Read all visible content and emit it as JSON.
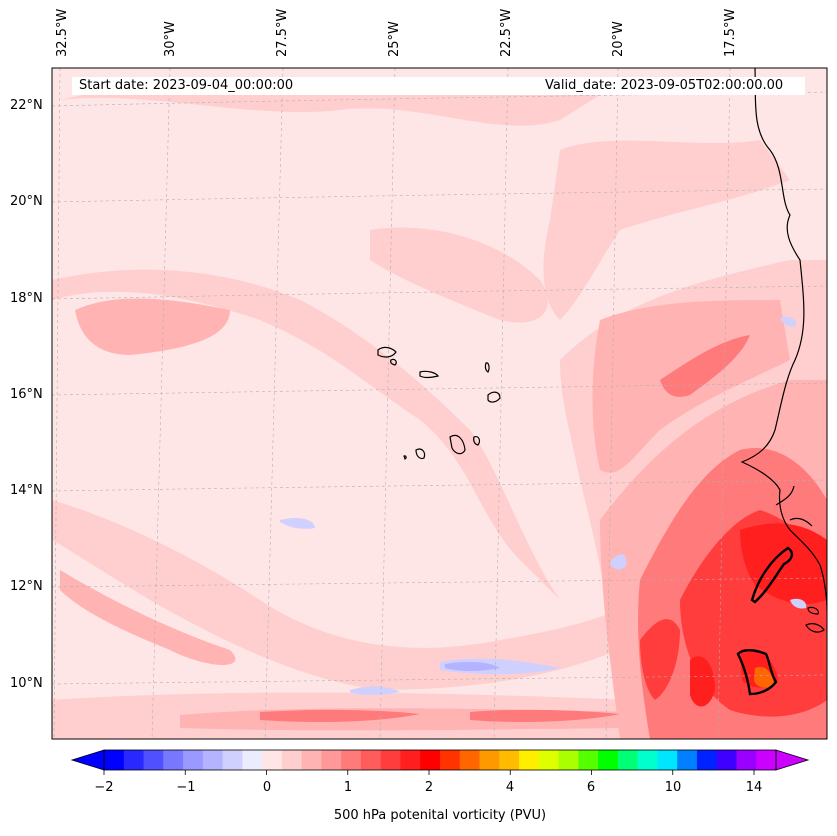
{
  "map": {
    "start_date": "Start date: 2023-09-04_00:00:00",
    "valid_date": "Valid_date: 2023-09-05T02:00:00.00",
    "lon_labels": [
      "32.5°W",
      "30°W",
      "27.5°W",
      "25°W",
      "22.5°W",
      "20°W",
      "17.5°W"
    ],
    "lat_labels": [
      "22°N",
      "20°N",
      "18°N",
      "16°N",
      "14°N",
      "12°N",
      "10°N"
    ],
    "extent": {
      "lon_min": -32.5,
      "lon_max": -15.5,
      "lat_min": 8.9,
      "lat_max": 22.8
    },
    "gridlines": true,
    "background_color": "#ffe6e6"
  },
  "colorbar": {
    "title": "500 hPa potenital vorticity (PVU)",
    "tick_labels": [
      "−2",
      "−1",
      "0",
      "1",
      "2",
      "4",
      "6",
      "10",
      "14"
    ],
    "colors": [
      "#0000ff",
      "#2828ff",
      "#5050ff",
      "#7878ff",
      "#9999ff",
      "#b3b3ff",
      "#d0d0ff",
      "#ececff",
      "#ffe6e6",
      "#ffcfcf",
      "#ffb3b3",
      "#ff9999",
      "#ff7a7a",
      "#ff5c5c",
      "#ff3d3d",
      "#ff1f1f",
      "#ff0000",
      "#ff3300",
      "#ff6600",
      "#ff9900",
      "#ffbb00",
      "#ffee00",
      "#ddff00",
      "#aaff00",
      "#55ff00",
      "#00ff00",
      "#00ff77",
      "#00ffcc",
      "#00e6ff",
      "#0080ff",
      "#0022ff",
      "#4000ff",
      "#9900ff",
      "#cc00ff"
    ],
    "extend": "both"
  }
}
